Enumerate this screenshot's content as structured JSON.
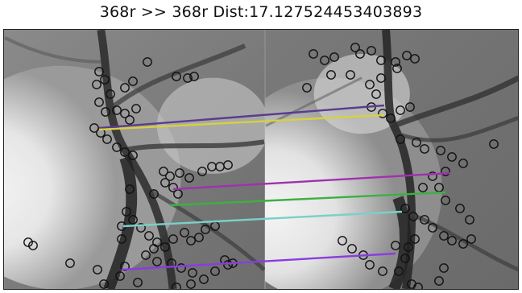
{
  "title": "368r >> 368r Dist:17.127524453403893",
  "colors": {
    "text": "#111111",
    "keypoint": "#111111",
    "match_purple_dark": "#5a3d8c",
    "match_yellow": "#d8d040",
    "match_magenta": "#a030b0",
    "match_green": "#3cb043",
    "match_teal": "#7ad0c8",
    "match_violet": "#8a3ce0"
  },
  "icons": [
    "keypoint-circle-icon"
  ]
}
